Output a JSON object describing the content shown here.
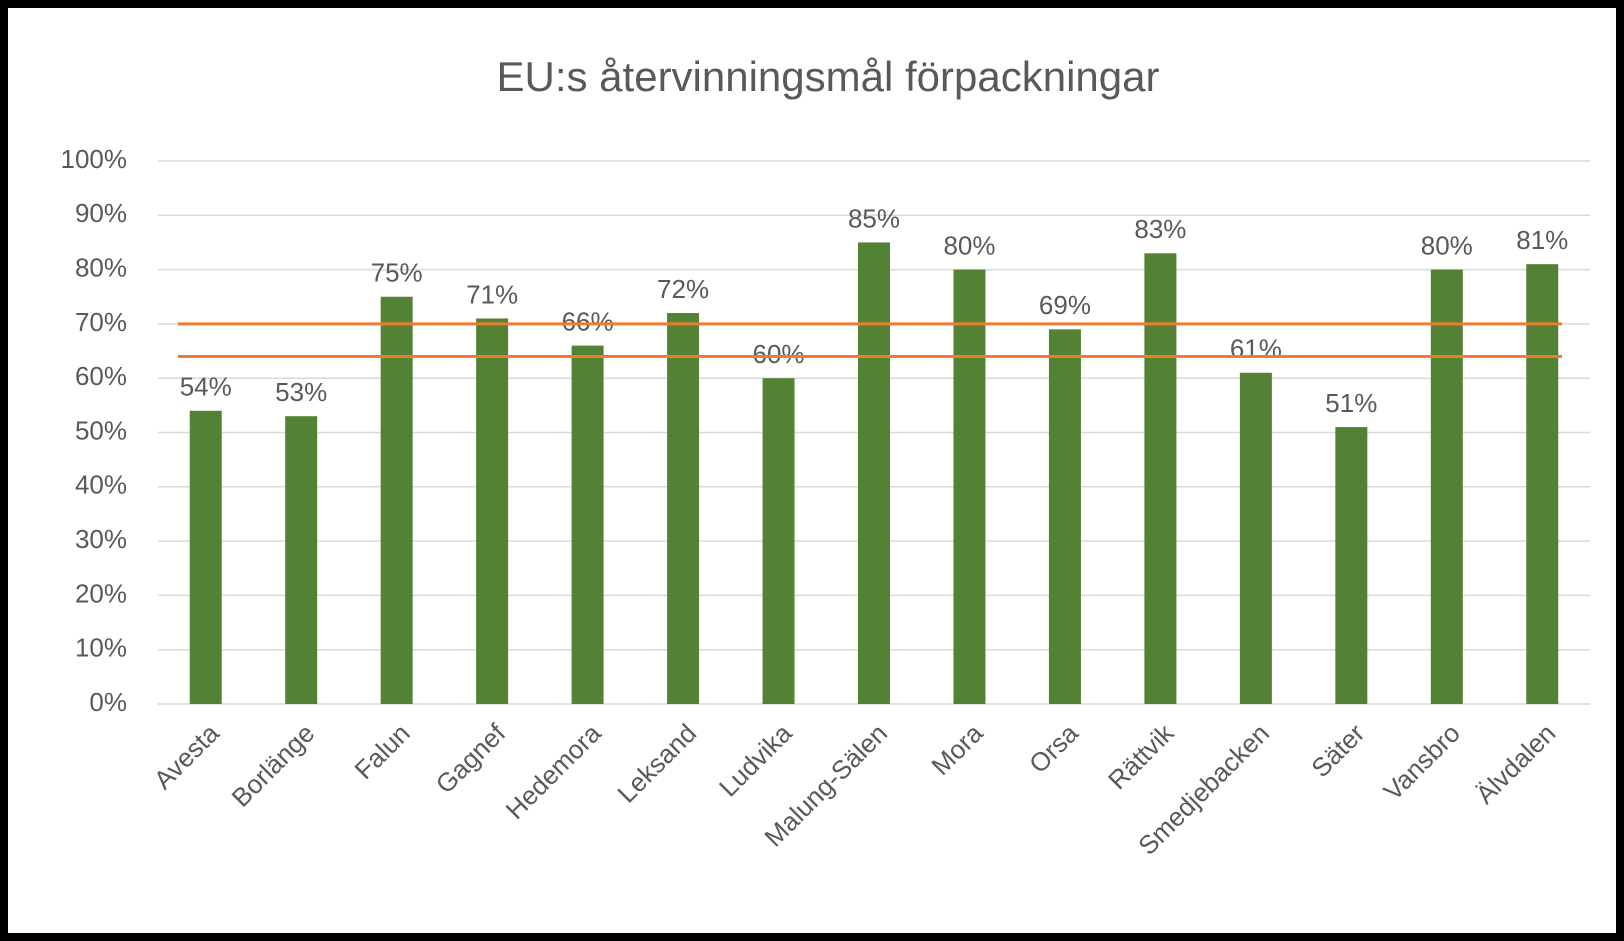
{
  "chart_data": {
    "type": "bar",
    "title": "EU:s återvinningsmål  förpackningar",
    "categories": [
      "Avesta",
      "Borlänge",
      "Falun",
      "Gagnef",
      "Hedemora",
      "Leksand",
      "Ludvika",
      "Malung-Sälen",
      "Mora",
      "Orsa",
      "Rättvik",
      "Smedjebacken",
      "Säter",
      "Vansbro",
      "Älvdalen"
    ],
    "values": [
      54,
      53,
      75,
      71,
      66,
      72,
      60,
      85,
      80,
      69,
      83,
      61,
      51,
      80,
      81
    ],
    "value_labels": [
      "54%",
      "53%",
      "75%",
      "71%",
      "66%",
      "72%",
      "60%",
      "85%",
      "80%",
      "69%",
      "83%",
      "61%",
      "51%",
      "80%",
      "81%"
    ],
    "color": "#548235",
    "ylim": [
      0,
      100
    ],
    "yticks": [
      {
        "value": 0,
        "label": "0%"
      },
      {
        "value": 10,
        "label": "10%"
      },
      {
        "value": 20,
        "label": "20%"
      },
      {
        "value": 30,
        "label": "30%"
      },
      {
        "value": 40,
        "label": "40%"
      },
      {
        "value": 50,
        "label": "50%"
      },
      {
        "value": 60,
        "label": "60%"
      },
      {
        "value": 70,
        "label": "70%"
      },
      {
        "value": 80,
        "label": "80%"
      },
      {
        "value": 90,
        "label": "90%"
      },
      {
        "value": 100,
        "label": "100%"
      }
    ],
    "grid": true,
    "reference_lines": {
      "color": "#ed7d31",
      "values": [
        70,
        64
      ]
    }
  }
}
